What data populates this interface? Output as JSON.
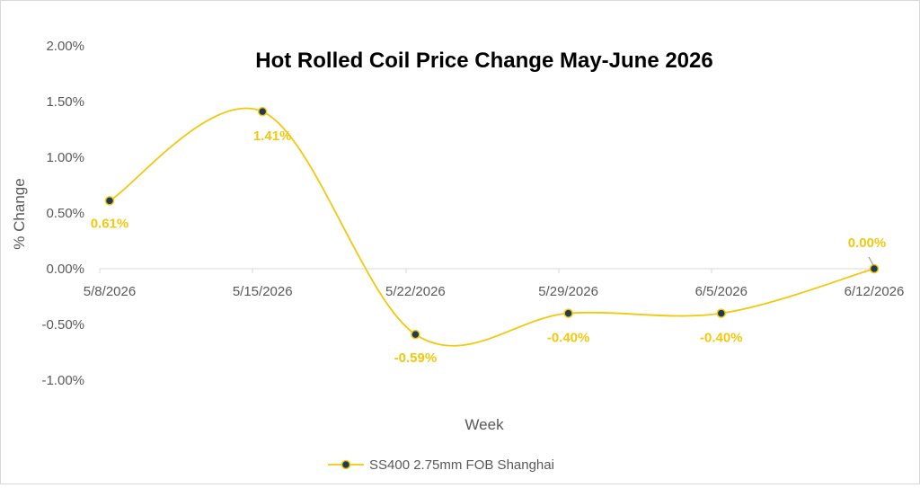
{
  "chart_data": {
    "type": "line",
    "title": "Hot Rolled Coil Price Change May-June 2026",
    "xlabel": "Week",
    "ylabel": "% Change",
    "categories": [
      "5/8/2026",
      "5/15/2026",
      "5/22/2026",
      "5/29/2026",
      "6/5/2026",
      "6/12/2026"
    ],
    "series": [
      {
        "name": "SS400 2.75mm FOB Shanghai",
        "values": [
          0.61,
          1.41,
          -0.59,
          -0.4,
          -0.4,
          0.0
        ],
        "labels": [
          "0.61%",
          "1.41%",
          "-0.59%",
          "-0.40%",
          "-0.40%",
          "0.00%"
        ]
      }
    ],
    "ylim": [
      -1.0,
      2.0
    ],
    "yticks": [
      "2.00%",
      "1.50%",
      "1.00%",
      "0.50%",
      "0.00%",
      "-0.50%",
      "-1.00%"
    ],
    "grid": false,
    "smooth": true,
    "legend_position": "bottom",
    "colors": {
      "line": "#f2c80f",
      "marker_fill": "#1f3b57",
      "marker_edge": "#f2c80f",
      "data_label": "#f2c80f",
      "axis": "#d9d9d9",
      "text": "#595959"
    }
  }
}
